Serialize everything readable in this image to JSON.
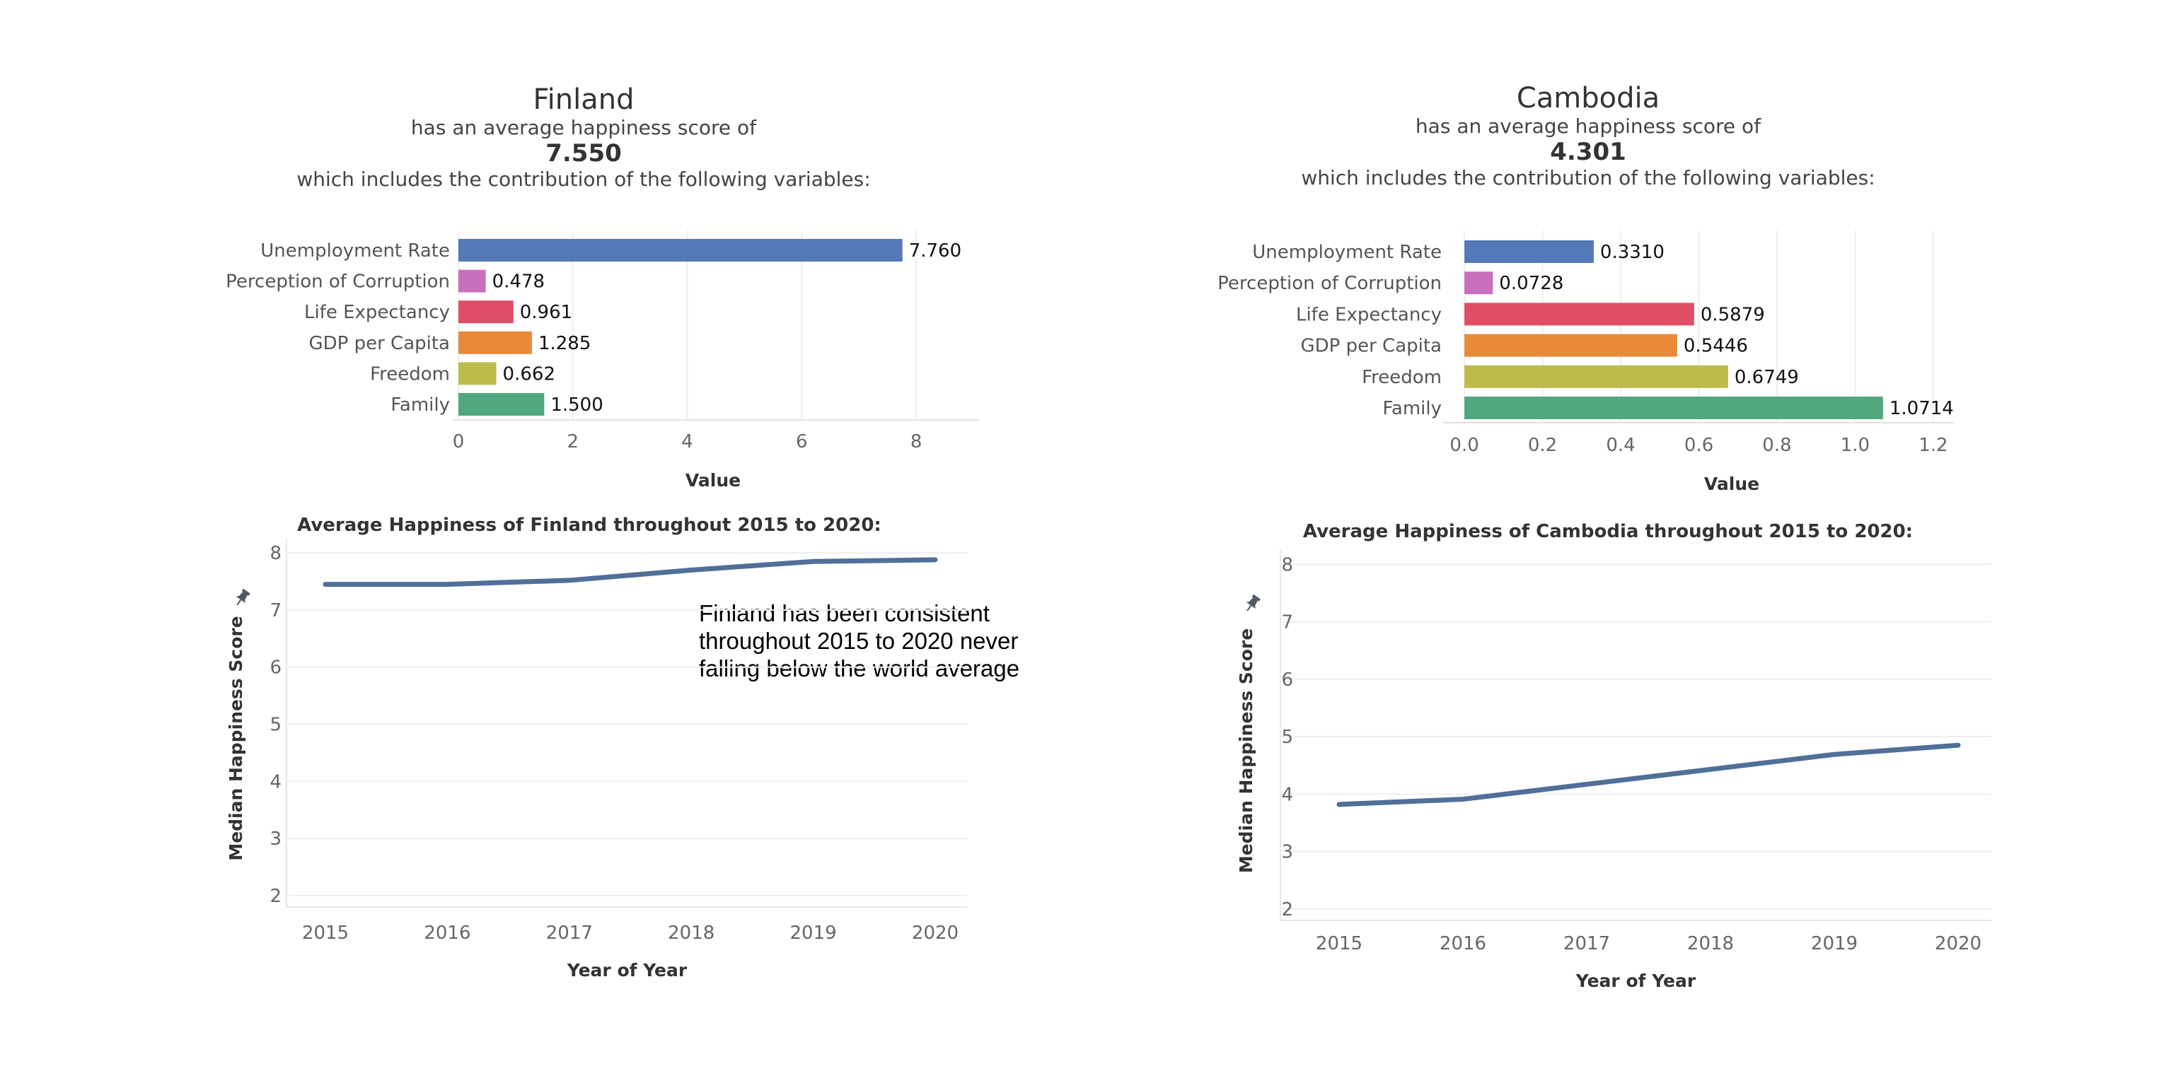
{
  "panels": [
    {
      "country": "Finland",
      "line1": "has an average happiness score of",
      "score": "7.550",
      "line2": "which includes the contribution of the following variables:",
      "annotation": "Finland has been consistent throughout 2015 to 2020 never falling below the world average"
    },
    {
      "country": "Cambodia",
      "line1": "has an average happiness score of",
      "score": "4.301",
      "line2": "which includes the contribution of the following variables:",
      "annotation": ""
    }
  ],
  "colors": {
    "Unemployment Rate": "#5479b9",
    "Perception of Corruption": "#c96fbe",
    "Life Expectancy": "#df4e64",
    "GDP per Capita": "#e98a3b",
    "Freedom": "#bcbc4b",
    "Family": "#52a87e",
    "line": "#506f99"
  },
  "chart_data": [
    {
      "type": "bar",
      "orientation": "horizontal",
      "categories": [
        "Unemployment Rate",
        "Perception of Corruption",
        "Life Expectancy",
        "GDP per Capita",
        "Freedom",
        "Family"
      ],
      "values": [
        7.76,
        0.478,
        0.961,
        1.285,
        0.662,
        1.5
      ],
      "labels": [
        "7.760",
        "0.478",
        "0.961",
        "1.285",
        "0.662",
        "1.500"
      ],
      "xlabel": "Value",
      "xlim": [
        0,
        9
      ],
      "xticks": [
        0,
        2,
        4,
        6,
        8
      ],
      "tick_labels": [
        "0",
        "2",
        "4",
        "6",
        "8"
      ],
      "grid": true
    },
    {
      "type": "line",
      "title": "Average Happiness of Finland throughout 2015 to 2020:",
      "x": [
        2015,
        2016,
        2017,
        2018,
        2019,
        2020
      ],
      "y": [
        7.45,
        7.45,
        7.52,
        7.7,
        7.85,
        7.88
      ],
      "xlabel": "Year of Year",
      "ylabel": "Median Happiness Score",
      "ylim": [
        1.8,
        8.2
      ],
      "yticks": [
        2,
        3,
        4,
        5,
        6,
        7,
        8
      ],
      "grid": true
    },
    {
      "type": "bar",
      "orientation": "horizontal",
      "categories": [
        "Unemployment Rate",
        "Perception of Corruption",
        "Life Expectancy",
        "GDP per Capita",
        "Freedom",
        "Family"
      ],
      "values": [
        0.331,
        0.0728,
        0.5879,
        0.5446,
        0.6749,
        1.0714
      ],
      "labels": [
        "0.3310",
        "0.0728",
        "0.5879",
        "0.5446",
        "0.6749",
        "1.0714"
      ],
      "xlabel": "Value",
      "xlim": [
        -0.04,
        1.24
      ],
      "xticks": [
        0,
        0.2,
        0.4,
        0.6,
        0.8,
        1.0,
        1.2
      ],
      "tick_labels": [
        "0.0",
        "0.2",
        "0.4",
        "0.6",
        "0.8",
        "1.0",
        "1.2"
      ],
      "grid": true
    },
    {
      "type": "line",
      "title": "Average Happiness of Cambodia throughout 2015 to 2020:",
      "x": [
        2015,
        2016,
        2017,
        2018,
        2019,
        2020
      ],
      "y": [
        3.82,
        3.91,
        4.17,
        4.43,
        4.69,
        4.85
      ],
      "xlabel": "Year of Year",
      "ylabel": "Median Happiness Score",
      "ylim": [
        1.8,
        8.2
      ],
      "yticks": [
        2,
        3,
        4,
        5,
        6,
        7,
        8
      ],
      "grid": true
    }
  ]
}
